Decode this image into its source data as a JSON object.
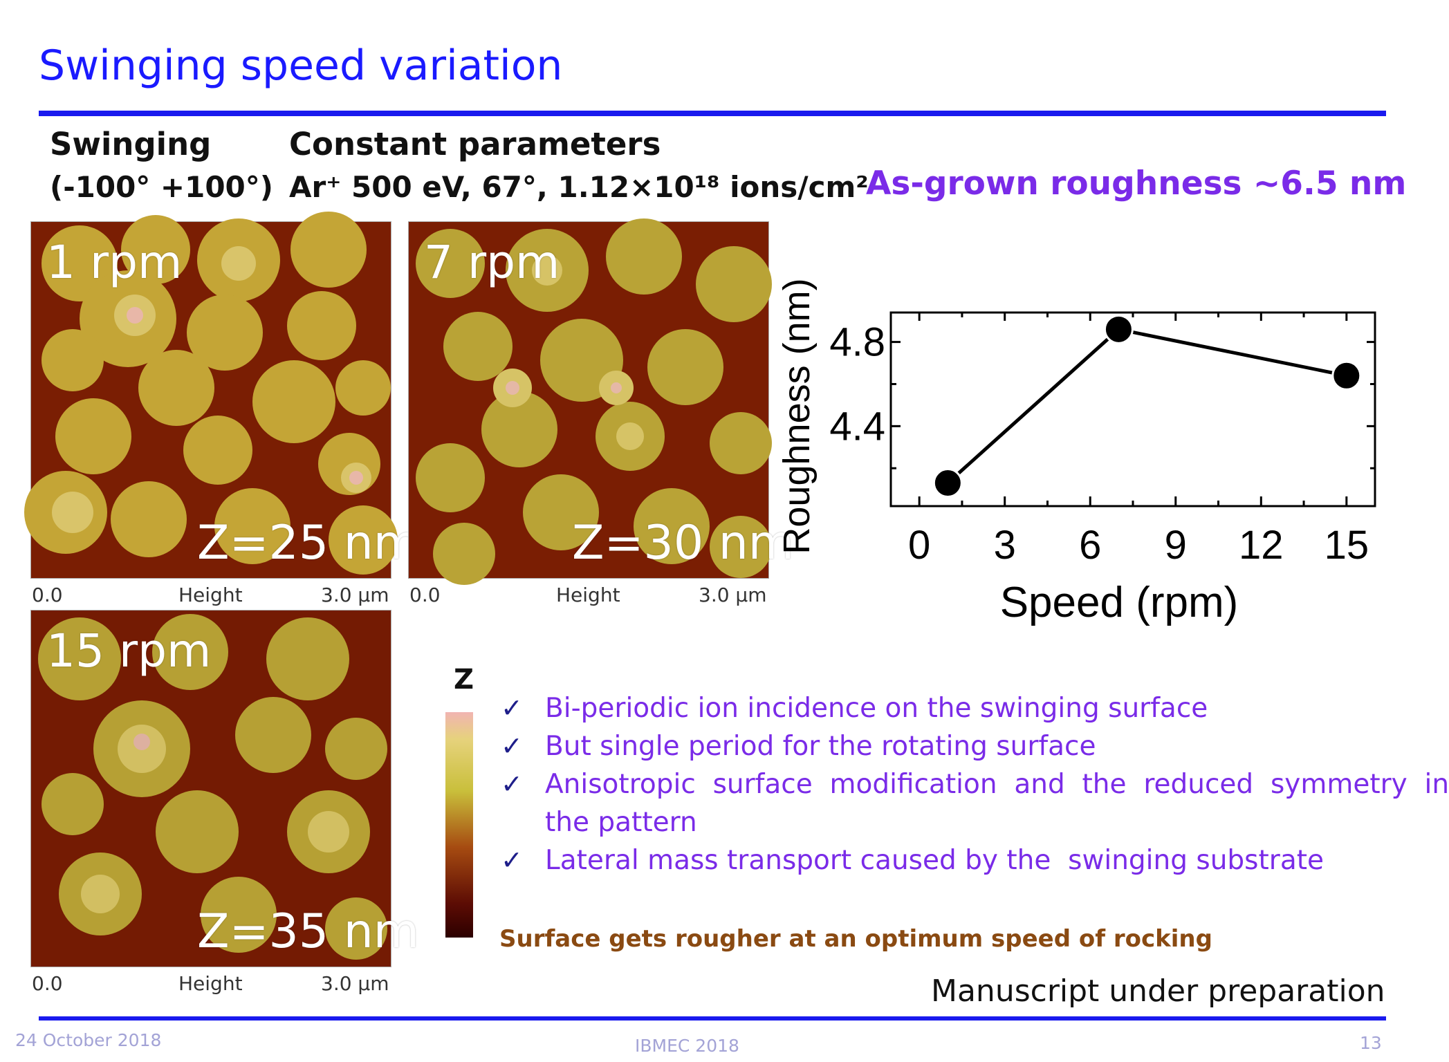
{
  "slide": {
    "title": "Swinging speed variation",
    "swinging_label": "Swinging",
    "swinging_range": "(-100° +100°)",
    "constant_params_heading": "Constant parameters",
    "constant_params": "Ar⁺ 500 eV, 67°, 1.12×10¹⁸ ions/cm²",
    "as_grown": "As-grown roughness ~6.5 nm"
  },
  "afm_images": [
    {
      "speed": "1 rpm",
      "z": "Z=25 nm",
      "scale_start": "0.0",
      "scale_mid": "Height",
      "scale_end": "3.0 µm"
    },
    {
      "speed": "7 rpm",
      "z": "Z=30 nm",
      "scale_start": "0.0",
      "scale_mid": "Height",
      "scale_end": "3.0 µm"
    },
    {
      "speed": "15 rpm",
      "z": "Z=35 nm",
      "scale_start": "0.0",
      "scale_mid": "Height",
      "scale_end": "3.0 µm"
    }
  ],
  "colorbar": {
    "label": "Z"
  },
  "bullets": [
    "Bi-periodic ion incidence on the swinging surface",
    "But single period for the rotating surface",
    "Anisotropic  surface  modification  and  the  reduced  symmetry  in",
    "the pattern",
    "Lateral mass transport caused by the  swinging substrate"
  ],
  "check_mark": "✓",
  "conclusion": "Surface gets rougher at an optimum speed of rocking",
  "manuscript": "Manuscript under preparation",
  "footer": {
    "date": "24 October 2018",
    "conference": "IBMEC 2018",
    "page": "13"
  },
  "colors": {
    "title": "#1a1aff",
    "accent": "#7a2be8",
    "conclusion": "#8a4a12"
  },
  "chart_data": {
    "type": "line",
    "x": [
      1,
      7,
      15
    ],
    "y": [
      4.13,
      4.86,
      4.64
    ],
    "xlabel": "Speed (rpm)",
    "ylabel": "Roughness (nm)",
    "xlim": [
      -1,
      16
    ],
    "ylim": [
      4.02,
      4.94
    ],
    "xticks": [
      "0",
      "3",
      "6",
      "9",
      "12",
      "15"
    ],
    "yticks": [
      "4.4",
      "4.8"
    ],
    "xtick_values": [
      0,
      3,
      6,
      9,
      12,
      15
    ],
    "ytick_values": [
      4.4,
      4.8
    ],
    "grid": false,
    "legend": "none",
    "marker": "filled circle"
  }
}
